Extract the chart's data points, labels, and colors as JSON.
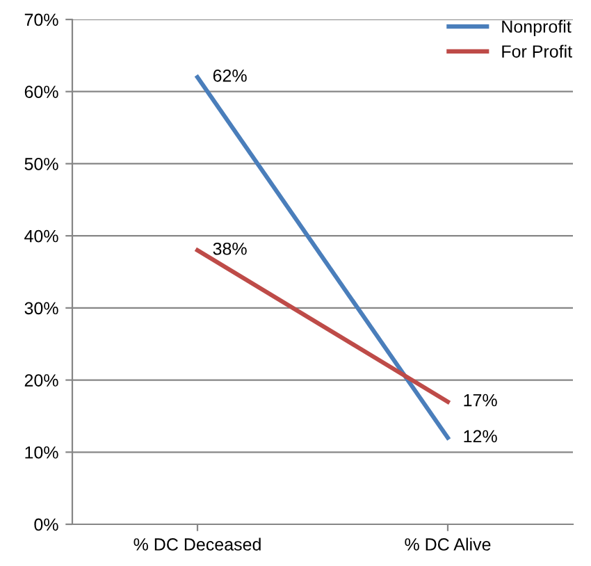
{
  "chart_data": {
    "type": "line",
    "categories": [
      "% DC Deceased",
      "% DC Alive"
    ],
    "series": [
      {
        "name": "Nonprofit",
        "color": "#4a7ebb",
        "values": [
          62,
          12
        ],
        "value_labels": [
          "62%",
          "12%"
        ]
      },
      {
        "name": "For Profit",
        "color": "#be4b48",
        "values": [
          38,
          17
        ],
        "value_labels": [
          "38%",
          "17%"
        ]
      }
    ],
    "ylim": [
      0,
      70
    ],
    "yticks": [
      {
        "value": 0,
        "label": "0%"
      },
      {
        "value": 10,
        "label": "10%"
      },
      {
        "value": 20,
        "label": "20%"
      },
      {
        "value": 30,
        "label": "30%"
      },
      {
        "value": 40,
        "label": "40%"
      },
      {
        "value": 50,
        "label": "50%"
      },
      {
        "value": 60,
        "label": "60%"
      },
      {
        "value": 70,
        "label": "70%"
      }
    ],
    "grid": "y",
    "legend": "top right",
    "marker": "none",
    "line_style": "solid"
  }
}
